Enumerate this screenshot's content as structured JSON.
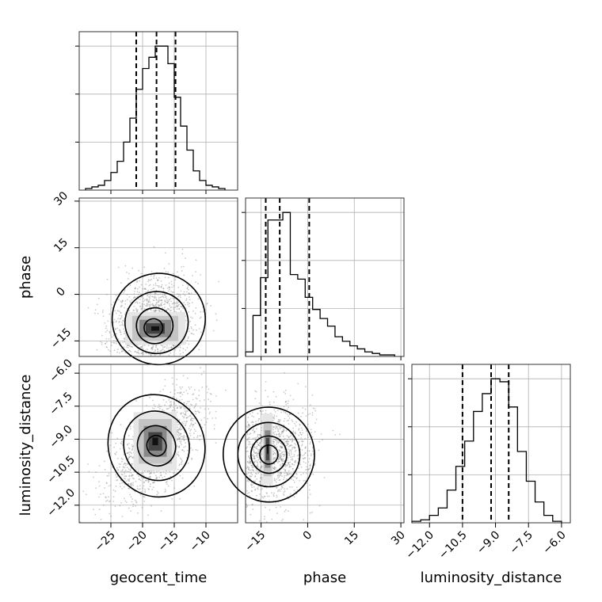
{
  "chart_data": {
    "type": "corner",
    "parameters": [
      "geocent_time",
      "phase",
      "luminosity_distance"
    ],
    "grid": true,
    "axes": {
      "geocent_time": {
        "range": [
          -30,
          -5
        ],
        "ticks": [
          -25,
          -20,
          -15,
          -10
        ],
        "tick_labels": [
          "−25",
          "−20",
          "−15",
          "−10"
        ]
      },
      "phase": {
        "range": [
          -20,
          31
        ],
        "ticks": [
          -15,
          0,
          15,
          30
        ],
        "tick_labels": [
          "−15",
          "0",
          "15",
          "30"
        ]
      },
      "luminosity_distance": {
        "range": [
          -12.8,
          -5.6
        ],
        "ticks": [
          -12.0,
          -10.5,
          -9.0,
          -7.5,
          -6.0
        ],
        "tick_labels": [
          "−12.0",
          "−10.5",
          "−9.0",
          "−7.5",
          "−6.0"
        ]
      }
    },
    "histograms": [
      {
        "parameter": "geocent_time",
        "quantiles": [
          -21.0,
          -17.8,
          -14.8
        ],
        "bin_edges": [
          -29.0,
          -28.0,
          -27.0,
          -26.0,
          -25.0,
          -24.0,
          -23.0,
          -22.0,
          -21.0,
          -20.0,
          -19.0,
          -18.0,
          -17.0,
          -16.0,
          -15.0,
          -14.0,
          -13.0,
          -12.0,
          -11.0,
          -10.0,
          -9.0,
          -8.0,
          -7.0
        ],
        "counts": [
          1,
          2,
          3,
          6,
          11,
          18,
          30,
          45,
          63,
          76,
          83,
          90,
          90,
          79,
          58,
          40,
          25,
          12,
          6,
          3,
          2,
          1
        ]
      },
      {
        "parameter": "phase",
        "quantiles": [
          -13.5,
          -9.0,
          0.5
        ],
        "bin_edges": [
          -20,
          -17.6,
          -15.2,
          -12.8,
          -10.4,
          -8.0,
          -5.6,
          -3.2,
          -0.8,
          1.6,
          4.0,
          6.4,
          8.8,
          11.2,
          13.6,
          16.0,
          18.4,
          20.8,
          23.2,
          25.6,
          28.0
        ],
        "counts": [
          3,
          27,
          52,
          90,
          90,
          95,
          54,
          51,
          39,
          31,
          25,
          20,
          13,
          10,
          7,
          5,
          3,
          2,
          1,
          1
        ]
      },
      {
        "parameter": "luminosity_distance",
        "quantiles": [
          -10.5,
          -9.2,
          -8.4
        ],
        "bin_edges": [
          -12.8,
          -12.4,
          -12.0,
          -11.6,
          -11.2,
          -10.8,
          -10.4,
          -10.0,
          -9.6,
          -9.2,
          -8.8,
          -8.4,
          -8.0,
          -7.6,
          -7.2,
          -6.8,
          -6.4,
          -6.0
        ],
        "counts": [
          1,
          2,
          5,
          10,
          22,
          38,
          55,
          75,
          87,
          97,
          95,
          78,
          48,
          28,
          14,
          5,
          1
        ]
      }
    ],
    "contour_panels": [
      {
        "x": "geocent_time",
        "y": "phase",
        "center": [
          -18.5,
          -11.5
        ],
        "dense_core": [
          [
            -20.5,
            -13.8
          ],
          [
            -15.5,
            -8.2
          ]
        ]
      },
      {
        "x": "geocent_time",
        "y": "luminosity_distance",
        "center": [
          -17.8,
          -9.3
        ],
        "dense_core": [
          [
            -19.8,
            -9.8
          ],
          [
            -16.2,
            -8.4
          ]
        ]
      },
      {
        "x": "phase",
        "y": "luminosity_distance",
        "center": [
          -12.5,
          -9.7
        ],
        "dense_core": [
          [
            -13.8,
            -10.3
          ],
          [
            -12.0,
            -8.6
          ]
        ]
      }
    ]
  }
}
